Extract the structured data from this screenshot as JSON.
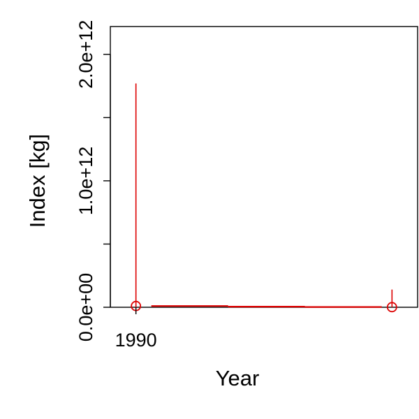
{
  "chart_data": {
    "type": "line",
    "xlabel": "Year",
    "ylabel": "Index [kg]",
    "xlim": [
      1989,
      2001
    ],
    "ylim": [
      0,
      2220000000000.0
    ],
    "x_ticks": [
      1990
    ],
    "x_tick_labels": [
      "1990"
    ],
    "y_ticks": [
      0,
      500000000000,
      1000000000000,
      1500000000000,
      2000000000000
    ],
    "y_tick_labels": [
      "0.0e+00",
      "",
      "1.0e+12",
      "",
      "2.0e+12"
    ],
    "grid": false,
    "legend": "none",
    "colors": {
      "series": "#dd0000",
      "axis": "#000000"
    },
    "series": [
      {
        "points": [
          {
            "x": 1990,
            "y": 10000000000.0,
            "lower": 0,
            "upper": 1770000000000.0
          },
          {
            "x": 2000,
            "y": 1000000000.0,
            "lower": 0,
            "upper": 140000000000.0
          }
        ],
        "line_segments": [
          {
            "x1": 1990.6,
            "x2": 1993.6,
            "y": 10000000000.0
          },
          {
            "x1": 1993.6,
            "x2": 1996.6,
            "y": 5000000000.0
          },
          {
            "x1": 1996.6,
            "x2": 1999.6,
            "y": 2000000000.0
          }
        ]
      }
    ]
  }
}
